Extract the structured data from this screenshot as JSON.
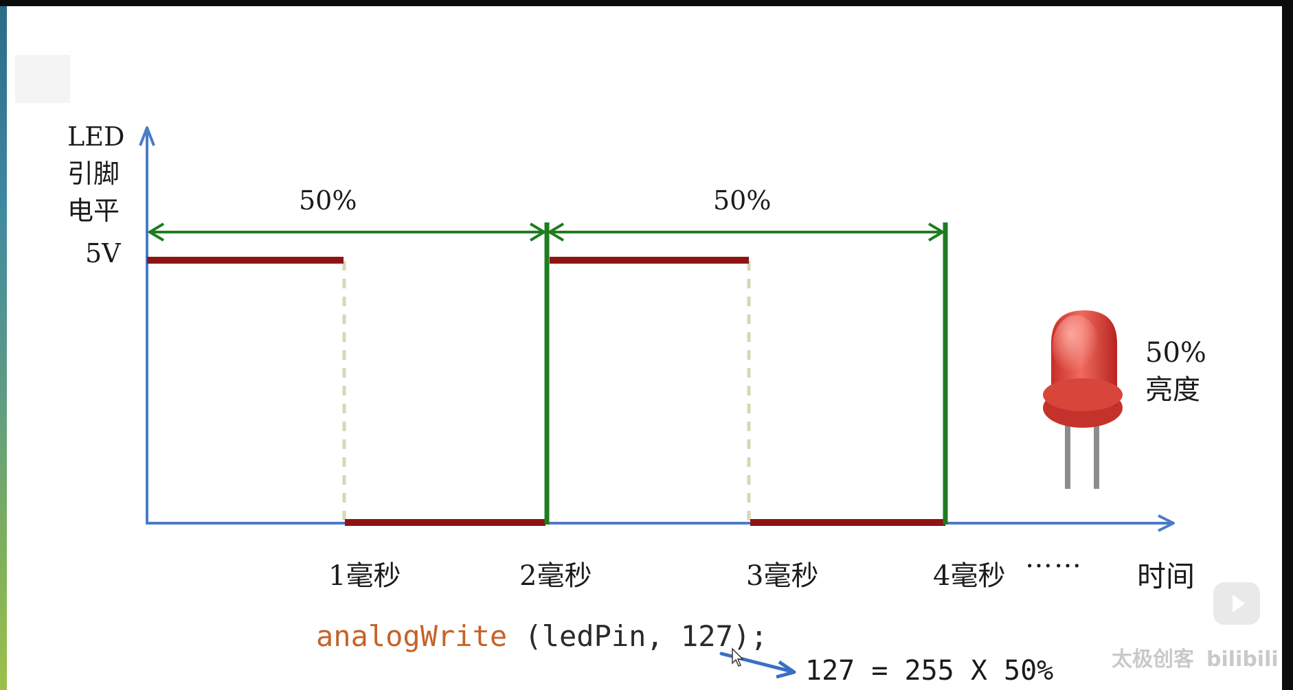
{
  "diagram": {
    "y_axis_label": [
      "LED",
      "引脚",
      "电平"
    ],
    "high_level_label": "5V",
    "duty_labels": [
      "50%",
      "50%"
    ],
    "time_ticks": [
      "1毫秒",
      "2毫秒",
      "3毫秒",
      "4毫秒"
    ],
    "continuation": "……",
    "x_axis_label": "时间",
    "brightness_label": [
      "50%",
      "亮度"
    ],
    "colors": {
      "axis": "#4a7cc6",
      "signal": "#8e1414",
      "period_marker": "#1f7d1f",
      "drop_line": "#d9d6b5",
      "code_function": "#c5632a",
      "annotation_arrow": "#3b6fc4"
    }
  },
  "code": {
    "function": "analogWrite",
    "args": " (ledPin, 127);"
  },
  "equation": "127 = 255 X 50%",
  "watermark": {
    "text": "太极创客",
    "brand": "bilibili"
  },
  "icons": [
    "led-bulb-icon",
    "play-button-icon"
  ]
}
